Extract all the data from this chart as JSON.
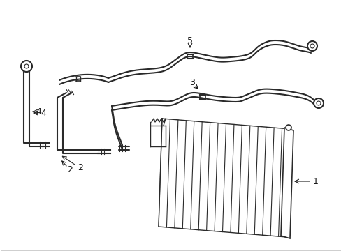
{
  "background_color": "#ffffff",
  "line_color": "#2a2a2a",
  "line_width": 1.5,
  "hatch_lw": 0.8,
  "label_fontsize": 9,
  "figsize": [
    4.89,
    3.6
  ],
  "dpi": 100,
  "label_color": "#1a1a1a"
}
